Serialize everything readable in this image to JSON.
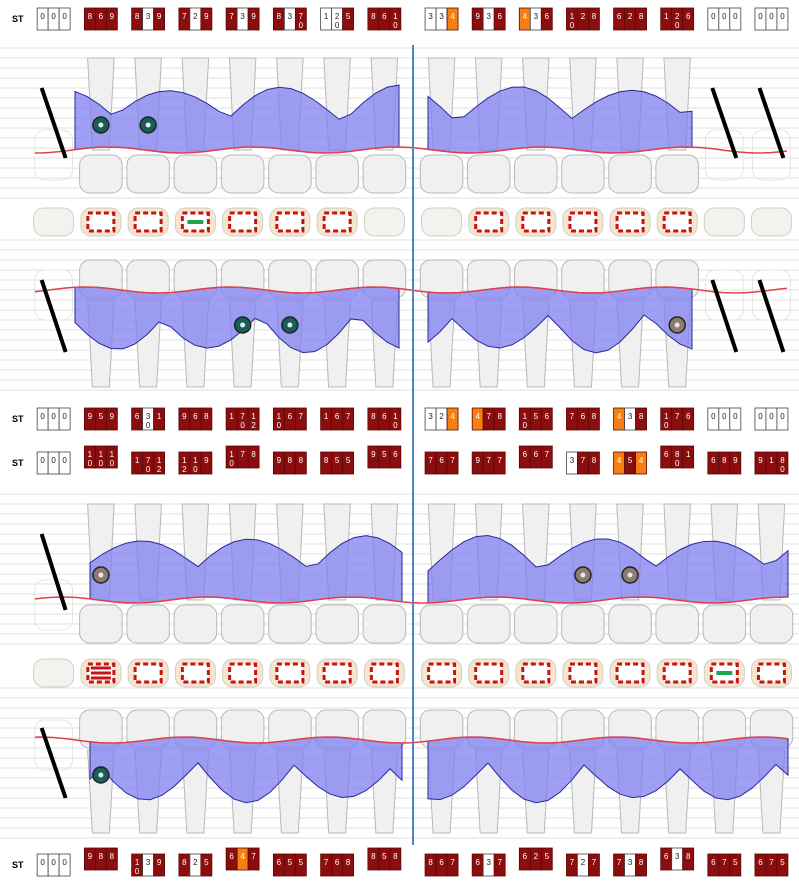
{
  "labels": {
    "st": "ST"
  },
  "colors": {
    "bleed": "#8b0d0d",
    "plaque": "#f57f12",
    "empty": "#ffffff",
    "pocket_fill": "#7f7ff0",
    "gingival_line": "#e0404a",
    "tooth_fill": "#f0f0f0",
    "tooth_stroke": "#b8b8b8",
    "divider": "#4f86c6",
    "implant_marker": "#17605a",
    "furcation_marker": "#8d7b70"
  },
  "rows": [
    {
      "id": "upper-buccal",
      "blocks": [
        [
          "0",
          "0",
          "0"
        ],
        [
          "8",
          "6",
          "9"
        ],
        [
          "8",
          "3",
          "9"
        ],
        [
          "7",
          "2",
          "9"
        ],
        [
          "7",
          "3",
          "9"
        ],
        [
          "8",
          "3",
          "7"
        ],
        [
          "1",
          "2",
          "5"
        ],
        [
          "8",
          "6",
          "1"
        ],
        [
          "3",
          "3",
          "4"
        ],
        [
          "9",
          "3",
          "6"
        ],
        [
          "4",
          "3",
          "6"
        ],
        [
          "1",
          "2",
          "8"
        ],
        [
          "6",
          "2",
          "8"
        ],
        [
          "1",
          "2",
          "6"
        ],
        [
          "0",
          "0",
          "0"
        ],
        [
          "0",
          "0",
          "0"
        ]
      ],
      "subs": [
        [
          "",
          "",
          ""
        ],
        [
          "",
          "",
          ""
        ],
        [
          "",
          "",
          ""
        ],
        [
          "",
          "",
          ""
        ],
        [
          "",
          "",
          ""
        ],
        [
          "",
          "",
          "0"
        ],
        [
          "",
          "0",
          ""
        ],
        [
          "",
          "",
          "0"
        ],
        [
          "",
          "",
          ""
        ],
        [
          "",
          "",
          ""
        ],
        [
          "",
          "",
          ""
        ],
        [
          "0",
          "",
          ""
        ],
        [
          "",
          "",
          ""
        ],
        [
          "",
          "0",
          ""
        ],
        [
          "",
          "",
          ""
        ],
        [
          "",
          "",
          ""
        ]
      ],
      "flags": [
        [
          "e",
          "e",
          "e"
        ],
        [
          "b",
          "b",
          "b"
        ],
        [
          "b",
          "e",
          "b"
        ],
        [
          "b",
          "e",
          "b"
        ],
        [
          "b",
          "e",
          "b"
        ],
        [
          "b",
          "e",
          "b"
        ],
        [
          "e",
          "e",
          "b"
        ],
        [
          "b",
          "b",
          "b"
        ],
        [
          "e",
          "e",
          "p"
        ],
        [
          "b",
          "e",
          "b"
        ],
        [
          "p",
          "e",
          "b"
        ],
        [
          "b",
          "b",
          "b"
        ],
        [
          "b",
          "b",
          "b"
        ],
        [
          "b",
          "b",
          "b"
        ],
        [
          "e",
          "e",
          "e"
        ],
        [
          "e",
          "e",
          "e"
        ]
      ]
    },
    {
      "id": "upper-lingual",
      "blocks": [
        [
          "0",
          "0",
          "0"
        ],
        [
          "9",
          "5",
          "9"
        ],
        [
          "6",
          "3",
          "1"
        ],
        [
          "9",
          "6",
          "8"
        ],
        [
          "1",
          "7",
          "1"
        ],
        [
          "1",
          "6",
          "7"
        ],
        [
          "1",
          "6",
          "7"
        ],
        [
          "8",
          "6",
          "1"
        ],
        [
          "3",
          "2",
          "4"
        ],
        [
          "4",
          "7",
          "8"
        ],
        [
          "1",
          "5",
          "6"
        ],
        [
          "7",
          "6",
          "8"
        ],
        [
          "4",
          "3",
          "8"
        ],
        [
          "1",
          "7",
          "6"
        ],
        [
          "0",
          "0",
          "0"
        ],
        [
          "0",
          "0",
          "0"
        ]
      ],
      "subs": [
        [
          "",
          "",
          ""
        ],
        [
          "",
          "",
          ""
        ],
        [
          "",
          "0",
          ""
        ],
        [
          "",
          "",
          ""
        ],
        [
          "",
          "0",
          "2"
        ],
        [
          "0",
          "",
          ""
        ],
        [
          "",
          "",
          ""
        ],
        [
          "",
          "",
          "0"
        ],
        [
          "",
          "",
          ""
        ],
        [
          "",
          "",
          ""
        ],
        [
          "0",
          "",
          ""
        ],
        [
          "",
          "",
          ""
        ],
        [
          "",
          "",
          ""
        ],
        [
          "0",
          "",
          ""
        ],
        [
          "",
          "",
          ""
        ],
        [
          "",
          "",
          ""
        ]
      ],
      "flags": [
        [
          "e",
          "e",
          "e"
        ],
        [
          "b",
          "b",
          "b"
        ],
        [
          "b",
          "e",
          "b"
        ],
        [
          "b",
          "b",
          "b"
        ],
        [
          "b",
          "b",
          "b"
        ],
        [
          "b",
          "b",
          "b"
        ],
        [
          "b",
          "b",
          "b"
        ],
        [
          "b",
          "b",
          "b"
        ],
        [
          "e",
          "e",
          "p"
        ],
        [
          "p",
          "b",
          "b"
        ],
        [
          "b",
          "b",
          "b"
        ],
        [
          "b",
          "b",
          "b"
        ],
        [
          "p",
          "e",
          "b"
        ],
        [
          "b",
          "b",
          "b"
        ],
        [
          "e",
          "e",
          "e"
        ],
        [
          "e",
          "e",
          "e"
        ]
      ]
    },
    {
      "id": "lower-lingual",
      "blocks": [
        [
          "0",
          "0",
          "0"
        ],
        [
          "1",
          "1",
          "1"
        ],
        [
          "1",
          "7",
          "1"
        ],
        [
          "1",
          "1",
          "9"
        ],
        [
          "1",
          "7",
          "8"
        ],
        [
          "9",
          "8",
          "8"
        ],
        [
          "8",
          "5",
          "5"
        ],
        [
          "9",
          "5",
          "6"
        ],
        [
          "7",
          "6",
          "7"
        ],
        [
          "9",
          "7",
          "7"
        ],
        [
          "6",
          "6",
          "7"
        ],
        [
          "3",
          "7",
          "8"
        ],
        [
          "4",
          "5",
          "4"
        ],
        [
          "6",
          "8",
          "1"
        ],
        [
          "6",
          "8",
          "9"
        ],
        [
          "9",
          "1",
          "8"
        ]
      ],
      "subs": [
        [
          "",
          "",
          ""
        ],
        [
          "0",
          "0",
          "0"
        ],
        [
          "",
          "0",
          "2"
        ],
        [
          "2",
          "0",
          ""
        ],
        [
          "0",
          "",
          ""
        ],
        [
          "",
          "",
          ""
        ],
        [
          "",
          "",
          ""
        ],
        [
          "",
          "",
          ""
        ],
        [
          "",
          "",
          ""
        ],
        [
          "",
          "",
          ""
        ],
        [
          "",
          "",
          ""
        ],
        [
          "",
          "",
          ""
        ],
        [
          "",
          "",
          ""
        ],
        [
          "",
          "0",
          ""
        ],
        [
          "",
          "",
          ""
        ],
        [
          "",
          "",
          "0"
        ]
      ],
      "flags": [
        [
          "e",
          "e",
          "e"
        ],
        [
          "b",
          "b",
          "b"
        ],
        [
          "b",
          "b",
          "b"
        ],
        [
          "b",
          "b",
          "b"
        ],
        [
          "b",
          "b",
          "b"
        ],
        [
          "b",
          "b",
          "b"
        ],
        [
          "b",
          "b",
          "b"
        ],
        [
          "b",
          "b",
          "b"
        ],
        [
          "b",
          "b",
          "b"
        ],
        [
          "b",
          "b",
          "b"
        ],
        [
          "b",
          "b",
          "b"
        ],
        [
          "e",
          "b",
          "b"
        ],
        [
          "p",
          "b",
          "p"
        ],
        [
          "b",
          "b",
          "b"
        ],
        [
          "b",
          "b",
          "b"
        ],
        [
          "b",
          "b",
          "b"
        ]
      ]
    },
    {
      "id": "lower-buccal",
      "blocks": [
        [
          "0",
          "0",
          "0"
        ],
        [
          "9",
          "8",
          "8"
        ],
        [
          "1",
          "3",
          "9"
        ],
        [
          "8",
          "2",
          "5"
        ],
        [
          "6",
          "4",
          "7"
        ],
        [
          "6",
          "5",
          "5"
        ],
        [
          "7",
          "6",
          "8"
        ],
        [
          "8",
          "5",
          "8"
        ],
        [
          "8",
          "6",
          "7"
        ],
        [
          "6",
          "3",
          "7"
        ],
        [
          "6",
          "2",
          "5"
        ],
        [
          "7",
          "2",
          "7"
        ],
        [
          "7",
          "3",
          "8"
        ],
        [
          "6",
          "3",
          "8"
        ],
        [
          "6",
          "7",
          "5"
        ],
        [
          "6",
          "7",
          "5"
        ]
      ],
      "subs": [
        [
          "",
          "",
          ""
        ],
        [
          "",
          "",
          ""
        ],
        [
          "0",
          "",
          ""
        ],
        [
          "",
          "",
          ""
        ],
        [
          "",
          "",
          ""
        ],
        [
          "",
          "",
          ""
        ],
        [
          "",
          "",
          ""
        ],
        [
          "",
          "",
          ""
        ],
        [
          "",
          "",
          ""
        ],
        [
          "",
          "",
          ""
        ],
        [
          "",
          "",
          ""
        ],
        [
          "",
          "",
          ""
        ],
        [
          "",
          "",
          ""
        ],
        [
          "",
          "",
          ""
        ],
        [
          "",
          "",
          ""
        ],
        [
          "",
          "",
          ""
        ]
      ],
      "flags": [
        [
          "e",
          "e",
          "e"
        ],
        [
          "b",
          "b",
          "b"
        ],
        [
          "b",
          "e",
          "b"
        ],
        [
          "b",
          "e",
          "b"
        ],
        [
          "b",
          "p",
          "b"
        ],
        [
          "b",
          "b",
          "b"
        ],
        [
          "b",
          "b",
          "b"
        ],
        [
          "b",
          "b",
          "b"
        ],
        [
          "b",
          "b",
          "b"
        ],
        [
          "b",
          "e",
          "b"
        ],
        [
          "b",
          "b",
          "b"
        ],
        [
          "b",
          "e",
          "b"
        ],
        [
          "b",
          "e",
          "b"
        ],
        [
          "b",
          "e",
          "b"
        ],
        [
          "b",
          "b",
          "b"
        ],
        [
          "b",
          "b",
          "b"
        ]
      ]
    }
  ],
  "occlusal_rows": [
    {
      "id": "upper-occlusal",
      "teeth": [
        "none",
        "restored",
        "restored",
        "filled-green",
        "restored",
        "restored",
        "restored",
        "none",
        "none",
        "restored",
        "restored",
        "restored",
        "restored",
        "restored",
        "none",
        "none"
      ]
    },
    {
      "id": "lower-occlusal",
      "teeth": [
        "none",
        "crown-full",
        "restored",
        "restored",
        "restored",
        "restored",
        "restored",
        "restored",
        "restored",
        "restored",
        "restored",
        "restored",
        "restored",
        "restored",
        "filled-green",
        "restored"
      ]
    }
  ],
  "markers": {
    "upper_buccal": [
      {
        "tooth": 2,
        "kind": "implant"
      },
      {
        "tooth": 3,
        "kind": "implant"
      }
    ],
    "upper_lingual": [
      {
        "tooth": 5,
        "kind": "implant"
      },
      {
        "tooth": 6,
        "kind": "implant"
      },
      {
        "tooth": 14,
        "kind": "furcation"
      }
    ],
    "lower_lingual": [
      {
        "tooth": 2,
        "kind": "furcation"
      },
      {
        "tooth": 12,
        "kind": "furcation"
      },
      {
        "tooth": 13,
        "kind": "furcation"
      }
    ],
    "lower_buccal": [
      {
        "tooth": 2,
        "kind": "implant"
      }
    ]
  },
  "missing_teeth": {
    "upper": [
      1,
      15,
      16
    ],
    "lower": [
      1
    ]
  }
}
